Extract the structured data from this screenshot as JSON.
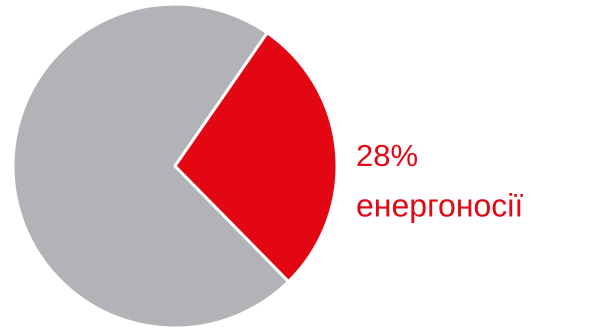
{
  "chart_data": {
    "type": "pie",
    "categories": [
      "енергоносії",
      null
    ],
    "values": [
      28,
      72
    ],
    "value_labels": [
      "28%",
      null
    ],
    "colors": [
      "#e30613",
      "#b1b3b6"
    ]
  }
}
